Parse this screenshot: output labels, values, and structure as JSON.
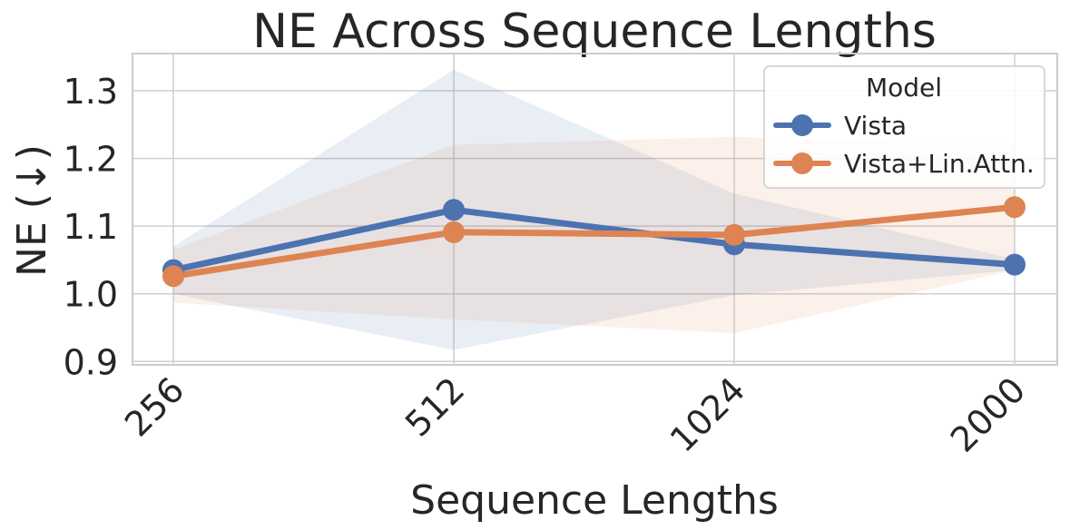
{
  "chart_data": {
    "type": "line",
    "title": "NE Across Sequence Lengths",
    "xlabel": "Sequence Lengths",
    "ylabel": "NE (↓)",
    "categories": [
      "256",
      "512",
      "1024",
      "2000"
    ],
    "ylim": [
      0.895,
      1.355
    ],
    "yticks": [
      0.9,
      1.0,
      1.1,
      1.2,
      1.3
    ],
    "ytick_labels": [
      "0.9",
      "1.0",
      "1.1",
      "1.2",
      "1.3"
    ],
    "grid": true,
    "legend": {
      "title": "Model",
      "placement": "top-right"
    },
    "series": [
      {
        "name": "Vista",
        "color": "#4c72b0",
        "values": [
          1.035,
          1.124,
          1.073,
          1.043
        ],
        "lower": [
          1.0,
          0.917,
          0.998,
          1.035
        ],
        "upper": [
          1.07,
          1.331,
          1.148,
          1.051
        ]
      },
      {
        "name": "Vista+Lin.Attn.",
        "color": "#dd8452",
        "values": [
          1.026,
          1.091,
          1.087,
          1.128
        ],
        "lower": [
          0.987,
          0.962,
          0.942,
          1.035
        ],
        "upper": [
          1.065,
          1.22,
          1.232,
          1.221
        ]
      }
    ]
  }
}
